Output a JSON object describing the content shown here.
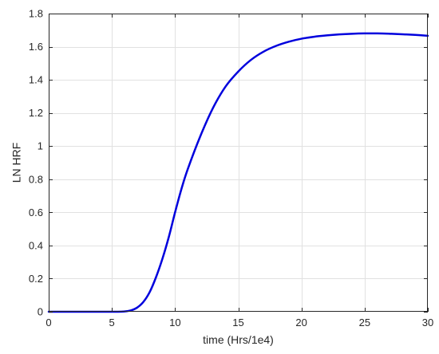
{
  "chart_data": {
    "type": "line",
    "xlabel": "time (Hrs/1e4)",
    "ylabel": "LN HRF",
    "xlim": [
      0,
      30
    ],
    "ylim": [
      0,
      1.8
    ],
    "xticks": [
      0,
      5,
      10,
      15,
      20,
      25,
      30
    ],
    "yticks": [
      0,
      0.2,
      0.4,
      0.6,
      0.8,
      1,
      1.2,
      1.4,
      1.6,
      1.8
    ],
    "grid": true,
    "series": [
      {
        "color": "#0000dd",
        "x": [
          0,
          5,
          6,
          6.5,
          7,
          7.5,
          8,
          8.5,
          9,
          9.5,
          10,
          10.5,
          11,
          12,
          13,
          14,
          15,
          16,
          17,
          18,
          19,
          20,
          21,
          22,
          23,
          24,
          25,
          26,
          27,
          28,
          29,
          30
        ],
        "y": [
          0,
          0,
          0.002,
          0.008,
          0.025,
          0.06,
          0.12,
          0.21,
          0.32,
          0.45,
          0.6,
          0.74,
          0.86,
          1.06,
          1.23,
          1.36,
          1.45,
          1.52,
          1.57,
          1.605,
          1.63,
          1.648,
          1.66,
          1.668,
          1.674,
          1.678,
          1.68,
          1.68,
          1.678,
          1.675,
          1.671,
          1.666
        ]
      }
    ]
  }
}
